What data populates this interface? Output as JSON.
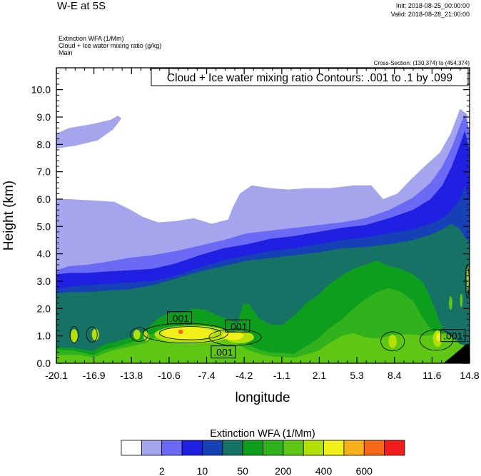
{
  "header": {
    "title": "W-E at 5S",
    "init": "Init: 2018-08-25_00:00:00",
    "valid": "Valid: 2018-08-28_21:00:00",
    "field_1": "Extinction WFA   (1/Mm)",
    "field_2": "Cloud + Ice water mixing ratio   (g/kg)",
    "field_3": "Main",
    "cross_section": "Cross-Section: (130,374) to (454,374)"
  },
  "chart_data": {
    "type": "heatmap",
    "title": "",
    "contour_label": "Cloud + Ice water mixing ratio Contours: .001 to .1 by .099",
    "xlabel": "longitude",
    "ylabel": "Height (km)",
    "x_ticks": [
      "-20.1",
      "-16.9",
      "-13.8",
      "-10.6",
      "-7.4",
      "-4.2",
      "-1.1",
      "2.1",
      "5.3",
      "8.4",
      "11.6",
      "14.8"
    ],
    "y_ticks": [
      "0.0",
      "1.0",
      "2.0",
      "3.0",
      "4.0",
      "5.0",
      "6.0",
      "7.0",
      "8.0",
      "9.0",
      "10.0"
    ],
    "xlim": [
      -20.1,
      14.8
    ],
    "ylim": [
      0,
      10.8
    ],
    "contour_labels": [
      {
        "text": ".001",
        "x": -9.7,
        "y": 1.65
      },
      {
        "text": ".001",
        "x": -4.8,
        "y": 1.35
      },
      {
        "text": ".001",
        "x": -6.0,
        "y": 0.4
      },
      {
        "text": ".001",
        "x": 13.4,
        "y": 1.0
      }
    ],
    "surface": [
      [
        12.6,
        0
      ],
      [
        13.3,
        0.25
      ],
      [
        14.0,
        0.5
      ],
      [
        14.5,
        0.7
      ],
      [
        14.8,
        0.7
      ],
      [
        14.8,
        0
      ]
    ],
    "colorbar": {
      "title": "Extinction WFA  (1/Mm)",
      "colors": [
        "#ffffff",
        "#a5a5ee",
        "#6a6af4",
        "#2020e2",
        "#1640b6",
        "#157264",
        "#0d9e1d",
        "#31b11b",
        "#5ec714",
        "#b4e00a",
        "#f0f01a",
        "#f8b11a",
        "#f76919",
        "#f21d1d"
      ],
      "labels": [
        "2",
        "10",
        "50",
        "200",
        "400",
        "600"
      ],
      "label_positions": [
        1,
        3,
        5,
        7,
        9,
        11
      ]
    },
    "layers": [
      {
        "color": "#a5a5ee",
        "top": [
          [
            -20.1,
            8.4
          ],
          [
            -19.0,
            8.6
          ],
          [
            -17.0,
            8.75
          ],
          [
            -15.5,
            8.9
          ],
          [
            -14.9,
            9.05
          ],
          [
            -14.6,
            8.95
          ],
          [
            -15.3,
            8.55
          ],
          [
            -16.6,
            8.15
          ],
          [
            -18.5,
            7.95
          ],
          [
            -20.1,
            7.85
          ],
          [
            -20.1,
            6.0
          ],
          [
            -19.0,
            6.0
          ],
          [
            -17.0,
            5.95
          ],
          [
            -15.2,
            5.9
          ],
          [
            -13.8,
            5.6
          ],
          [
            -12.8,
            5.35
          ],
          [
            -11.5,
            5.15
          ],
          [
            -10.0,
            5.2
          ],
          [
            -8.5,
            5.3
          ],
          [
            -7.0,
            5.1
          ],
          [
            -5.6,
            5.25
          ],
          [
            -5.2,
            5.7
          ],
          [
            -4.6,
            6.2
          ],
          [
            -3.6,
            6.5
          ],
          [
            -2.0,
            6.4
          ],
          [
            -0.5,
            6.35
          ],
          [
            1.0,
            6.4
          ],
          [
            3.0,
            6.4
          ],
          [
            5.0,
            6.5
          ],
          [
            6.5,
            6.5
          ],
          [
            7.5,
            6.0
          ],
          [
            8.7,
            6.2
          ],
          [
            9.8,
            6.7
          ],
          [
            11.0,
            7.2
          ],
          [
            12.3,
            7.7
          ],
          [
            13.2,
            8.4
          ],
          [
            14.0,
            9.3
          ],
          [
            14.6,
            9.1
          ],
          [
            14.8,
            8.0
          ]
        ]
      },
      {
        "color": "#6a6af4",
        "top": [
          [
            -20.1,
            3.4
          ],
          [
            -19.0,
            3.55
          ],
          [
            -17.5,
            3.6
          ],
          [
            -16.0,
            3.7
          ],
          [
            -14.0,
            3.85
          ],
          [
            -12.0,
            3.95
          ],
          [
            -10.0,
            4.1
          ],
          [
            -8.0,
            4.3
          ],
          [
            -6.0,
            4.5
          ],
          [
            -4.0,
            4.75
          ],
          [
            -2.0,
            4.85
          ],
          [
            0.0,
            4.95
          ],
          [
            2.0,
            5.05
          ],
          [
            4.0,
            5.15
          ],
          [
            6.0,
            5.3
          ],
          [
            8.0,
            5.6
          ],
          [
            10.0,
            6.05
          ],
          [
            11.5,
            6.6
          ],
          [
            12.5,
            7.2
          ],
          [
            13.3,
            7.9
          ],
          [
            14.0,
            8.7
          ],
          [
            14.4,
            9.1
          ],
          [
            14.8,
            8.5
          ]
        ]
      },
      {
        "color": "#2020e2",
        "top": [
          [
            -20.1,
            3.25
          ],
          [
            -19.0,
            3.3
          ],
          [
            -17.5,
            3.3
          ],
          [
            -16.0,
            3.35
          ],
          [
            -14.0,
            3.4
          ],
          [
            -12.0,
            3.45
          ],
          [
            -10.0,
            3.65
          ],
          [
            -8.0,
            3.95
          ],
          [
            -6.0,
            4.2
          ],
          [
            -4.0,
            4.35
          ],
          [
            -2.0,
            4.55
          ],
          [
            0.0,
            4.65
          ],
          [
            2.0,
            4.8
          ],
          [
            4.0,
            4.95
          ],
          [
            6.0,
            5.05
          ],
          [
            8.0,
            5.3
          ],
          [
            10.0,
            5.6
          ],
          [
            11.5,
            6.0
          ],
          [
            12.5,
            6.5
          ],
          [
            13.3,
            7.2
          ],
          [
            14.0,
            8.0
          ],
          [
            14.4,
            8.5
          ],
          [
            14.8,
            7.8
          ]
        ]
      },
      {
        "color": "#1640b6",
        "top": [
          [
            -20.1,
            2.7
          ],
          [
            -19.0,
            2.8
          ],
          [
            -17.5,
            2.85
          ],
          [
            -16.0,
            2.9
          ],
          [
            -14.0,
            2.95
          ],
          [
            -12.0,
            3.0
          ],
          [
            -10.0,
            3.2
          ],
          [
            -8.0,
            3.5
          ],
          [
            -6.0,
            3.75
          ],
          [
            -4.0,
            3.95
          ],
          [
            -2.0,
            4.1
          ],
          [
            0.0,
            4.2
          ],
          [
            2.0,
            4.35
          ],
          [
            4.0,
            4.5
          ],
          [
            6.0,
            4.6
          ],
          [
            8.0,
            4.75
          ],
          [
            10.0,
            4.9
          ],
          [
            11.5,
            5.1
          ],
          [
            12.5,
            5.3
          ],
          [
            13.3,
            5.6
          ],
          [
            14.0,
            6.0
          ],
          [
            14.4,
            6.5
          ],
          [
            14.8,
            5.8
          ]
        ]
      },
      {
        "color": "#157264",
        "top": [
          [
            -20.1,
            2.55
          ],
          [
            -19.0,
            2.6
          ],
          [
            -17.5,
            2.6
          ],
          [
            -16.0,
            2.65
          ],
          [
            -14.0,
            2.7
          ],
          [
            -12.0,
            2.85
          ],
          [
            -10.0,
            3.1
          ],
          [
            -8.0,
            3.35
          ],
          [
            -6.0,
            3.55
          ],
          [
            -4.0,
            3.75
          ],
          [
            -2.0,
            3.85
          ],
          [
            0.0,
            3.95
          ],
          [
            2.0,
            4.05
          ],
          [
            4.0,
            4.2
          ],
          [
            6.0,
            4.25
          ],
          [
            8.0,
            4.35
          ],
          [
            10.0,
            4.5
          ],
          [
            11.5,
            4.7
          ],
          [
            12.5,
            4.9
          ],
          [
            13.3,
            5.1
          ],
          [
            14.0,
            4.9
          ],
          [
            14.4,
            4.6
          ],
          [
            14.8,
            4.4
          ]
        ]
      },
      {
        "color": "#0d9e1d",
        "top": [
          [
            -20.1,
            0.6
          ],
          [
            -18.5,
            0.55
          ],
          [
            -17.0,
            0.45
          ],
          [
            -16.0,
            0.7
          ],
          [
            -15.0,
            0.8
          ],
          [
            -13.5,
            1.0
          ],
          [
            -12.5,
            1.25
          ],
          [
            -11.5,
            1.65
          ],
          [
            -10.5,
            1.85
          ],
          [
            -9.5,
            1.85
          ],
          [
            -8.5,
            2.0
          ],
          [
            -7.5,
            1.95
          ],
          [
            -6.5,
            1.75
          ],
          [
            -5.5,
            1.6
          ],
          [
            -4.8,
            1.45
          ],
          [
            -4.3,
            2.2
          ],
          [
            -3.8,
            2.15
          ],
          [
            -3.0,
            1.65
          ],
          [
            -2.0,
            1.4
          ],
          [
            -1.0,
            1.4
          ],
          [
            0.0,
            1.75
          ],
          [
            1.0,
            2.2
          ],
          [
            2.0,
            2.5
          ],
          [
            3.0,
            2.9
          ],
          [
            4.0,
            3.2
          ],
          [
            5.0,
            3.45
          ],
          [
            6.0,
            3.6
          ],
          [
            7.0,
            3.75
          ],
          [
            8.0,
            3.55
          ],
          [
            9.0,
            3.45
          ],
          [
            10.0,
            3.25
          ],
          [
            10.8,
            3.0
          ],
          [
            11.3,
            2.6
          ],
          [
            11.8,
            2.1
          ],
          [
            12.3,
            1.5
          ],
          [
            12.8,
            1.0
          ],
          [
            13.3,
            0.7
          ],
          [
            13.8,
            0.6
          ],
          [
            14.3,
            0.6
          ],
          [
            14.8,
            0.5
          ]
        ]
      },
      {
        "color": "#31b11b",
        "top": [
          [
            -20.1,
            0.5
          ],
          [
            -18.5,
            0.45
          ],
          [
            -17.0,
            0.3
          ],
          [
            -16.0,
            0.5
          ],
          [
            -15.0,
            0.6
          ],
          [
            -13.5,
            0.8
          ],
          [
            -12.5,
            0.95
          ],
          [
            -11.5,
            1.2
          ],
          [
            -10.5,
            1.35
          ],
          [
            -9.0,
            1.35
          ],
          [
            -7.5,
            1.3
          ],
          [
            -6.0,
            1.2
          ],
          [
            -5.0,
            1.0
          ],
          [
            -4.0,
            0.7
          ],
          [
            -3.0,
            0.5
          ],
          [
            -2.0,
            0.4
          ],
          [
            0.0,
            0.35
          ],
          [
            2.0,
            0.9
          ],
          [
            3.0,
            1.3
          ],
          [
            4.0,
            1.6
          ],
          [
            5.0,
            2.0
          ],
          [
            6.0,
            2.35
          ],
          [
            7.0,
            2.6
          ],
          [
            8.0,
            2.75
          ],
          [
            9.0,
            2.6
          ],
          [
            10.0,
            2.3
          ],
          [
            10.8,
            1.7
          ],
          [
            11.5,
            1.25
          ],
          [
            12.2,
            1.0
          ],
          [
            13.0,
            0.8
          ],
          [
            13.5,
            0.6
          ],
          [
            14.0,
            0.55
          ],
          [
            14.8,
            0.5
          ]
        ]
      },
      {
        "color": "#5ec714",
        "top": [
          [
            -20.1,
            0.3
          ],
          [
            -18.0,
            0.3
          ],
          [
            -17.0,
            0.2
          ],
          [
            -15.5,
            0.45
          ],
          [
            -14.0,
            0.6
          ],
          [
            -12.5,
            0.75
          ],
          [
            -11.5,
            1.0
          ],
          [
            -10.5,
            1.15
          ],
          [
            -9.0,
            1.15
          ],
          [
            -7.5,
            1.1
          ],
          [
            -6.0,
            1.0
          ],
          [
            -5.0,
            0.75
          ],
          [
            -4.0,
            0.5
          ],
          [
            -3.0,
            0.35
          ],
          [
            -2.0,
            0.25
          ],
          [
            0.0,
            0.2
          ],
          [
            2.0,
            0.45
          ],
          [
            3.0,
            0.75
          ],
          [
            4.0,
            1.0
          ],
          [
            5.0,
            1.1
          ],
          [
            6.0,
            0.95
          ],
          [
            7.0,
            0.9
          ],
          [
            8.0,
            1.0
          ],
          [
            9.0,
            1.05
          ],
          [
            10.0,
            1.05
          ],
          [
            11.0,
            1.0
          ],
          [
            12.0,
            1.05
          ],
          [
            12.8,
            1.1
          ],
          [
            13.5,
            0.9
          ],
          [
            14.0,
            0.7
          ],
          [
            14.8,
            0.6
          ]
        ]
      }
    ],
    "blobs": [
      {
        "color": "#b4e00a",
        "cx": -8.6,
        "cy": 1.05,
        "rx": 3.2,
        "ry": 0.33
      },
      {
        "color": "#b4e00a",
        "cx": -4.6,
        "cy": 0.95,
        "rx": 1.2,
        "ry": 0.22
      },
      {
        "color": "#f0f01a",
        "cx": -9.0,
        "cy": 1.1,
        "rx": 2.2,
        "ry": 0.24
      },
      {
        "color": "#f0f01a",
        "cx": -5.2,
        "cy": 1.0,
        "rx": 0.9,
        "ry": 0.15
      },
      {
        "color": "#f76919",
        "cx": -9.6,
        "cy": 1.15,
        "rx": 0.2,
        "ry": 0.08
      },
      {
        "color": "#b4e00a",
        "cx": -18.6,
        "cy": 1.0,
        "rx": 0.3,
        "ry": 0.25
      },
      {
        "color": "#b4e00a",
        "cx": -16.8,
        "cy": 1.05,
        "rx": 0.3,
        "ry": 0.22
      },
      {
        "color": "#b4e00a",
        "cx": -13.3,
        "cy": 1.05,
        "rx": 0.3,
        "ry": 0.18
      },
      {
        "color": "#b4e00a",
        "cx": -12.5,
        "cy": 1.0,
        "rx": 0.25,
        "ry": 0.18
      },
      {
        "color": "#b4e00a",
        "cx": 8.3,
        "cy": 0.8,
        "rx": 0.35,
        "ry": 0.25
      },
      {
        "color": "#b4e00a",
        "cx": 12.1,
        "cy": 0.9,
        "rx": 0.4,
        "ry": 0.3
      },
      {
        "color": "#f0f01a",
        "cx": 12.2,
        "cy": 0.95,
        "rx": 0.2,
        "ry": 0.15
      },
      {
        "color": "#b4e00a",
        "cx": 14.7,
        "cy": 3.1,
        "rx": 0.12,
        "ry": 0.45
      },
      {
        "color": "#f0f01a",
        "cx": 14.75,
        "cy": 3.1,
        "rx": 0.06,
        "ry": 0.25
      },
      {
        "color": "#5ec714",
        "cx": 13.2,
        "cy": 2.2,
        "rx": 0.15,
        "ry": 0.25
      },
      {
        "color": "#5ec714",
        "cx": 14.1,
        "cy": 2.3,
        "rx": 0.12,
        "ry": 0.25
      }
    ],
    "contours": [
      {
        "cx": -9.2,
        "cy": 1.1,
        "rx": 3.6,
        "ry": 0.36
      },
      {
        "cx": -8.8,
        "cy": 1.1,
        "rx": 2.6,
        "ry": 0.24
      },
      {
        "cx": -5.0,
        "cy": 0.95,
        "rx": 2.2,
        "ry": 0.3
      },
      {
        "cx": -18.6,
        "cy": 1.05,
        "rx": 0.35,
        "ry": 0.3
      },
      {
        "cx": -17.1,
        "cy": 1.05,
        "rx": 0.45,
        "ry": 0.28
      },
      {
        "cx": -13.1,
        "cy": 1.05,
        "rx": 0.75,
        "ry": 0.25
      },
      {
        "cx": 8.3,
        "cy": 0.8,
        "rx": 1.0,
        "ry": 0.35
      },
      {
        "cx": 12.0,
        "cy": 0.85,
        "rx": 1.4,
        "ry": 0.38
      },
      {
        "cx": 14.6,
        "cy": 3.0,
        "rx": 0.15,
        "ry": 0.6
      }
    ]
  }
}
